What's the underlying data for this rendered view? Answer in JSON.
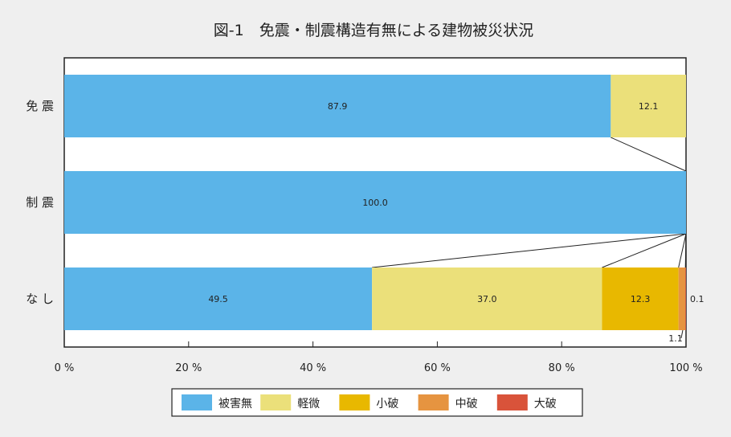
{
  "chart_data": {
    "type": "bar",
    "orientation": "horizontal",
    "stacked": true,
    "title": "図-1　免震・制震構造有無による建物被災状況",
    "categories": [
      "免 震",
      "制 震",
      "な し"
    ],
    "series": [
      {
        "name": "被害無",
        "color": "#5bb4e8",
        "values": [
          87.9,
          100.0,
          49.5
        ]
      },
      {
        "name": "軽微",
        "color": "#ebe07a",
        "values": [
          12.1,
          0,
          37.0
        ]
      },
      {
        "name": "小破",
        "color": "#e8b800",
        "values": [
          0,
          0,
          12.3
        ]
      },
      {
        "name": "中破",
        "color": "#e69440",
        "values": [
          0,
          0,
          1.1
        ]
      },
      {
        "name": "大破",
        "color": "#d9533a",
        "values": [
          0,
          0,
          0.1
        ]
      }
    ],
    "data_labels": [
      {
        "category": 0,
        "series": 0,
        "text": "87.9"
      },
      {
        "category": 0,
        "series": 1,
        "text": "12.1"
      },
      {
        "category": 1,
        "series": 0,
        "text": "100.0"
      },
      {
        "category": 2,
        "series": 0,
        "text": "49.5"
      },
      {
        "category": 2,
        "series": 1,
        "text": "37.0"
      },
      {
        "category": 2,
        "series": 2,
        "text": "12.3"
      },
      {
        "category": 2,
        "series": 3,
        "text": "1.1"
      },
      {
        "category": 2,
        "series": 4,
        "text": "0.1"
      }
    ],
    "xlim": [
      0,
      100
    ],
    "xticks": [
      0,
      20,
      40,
      60,
      80,
      100
    ],
    "xtick_labels": [
      "0 %",
      "20 %",
      "40 %",
      "60 %",
      "80 %",
      "100 %"
    ],
    "grid": false,
    "legend_position": "bottom",
    "connector_lines": true
  }
}
